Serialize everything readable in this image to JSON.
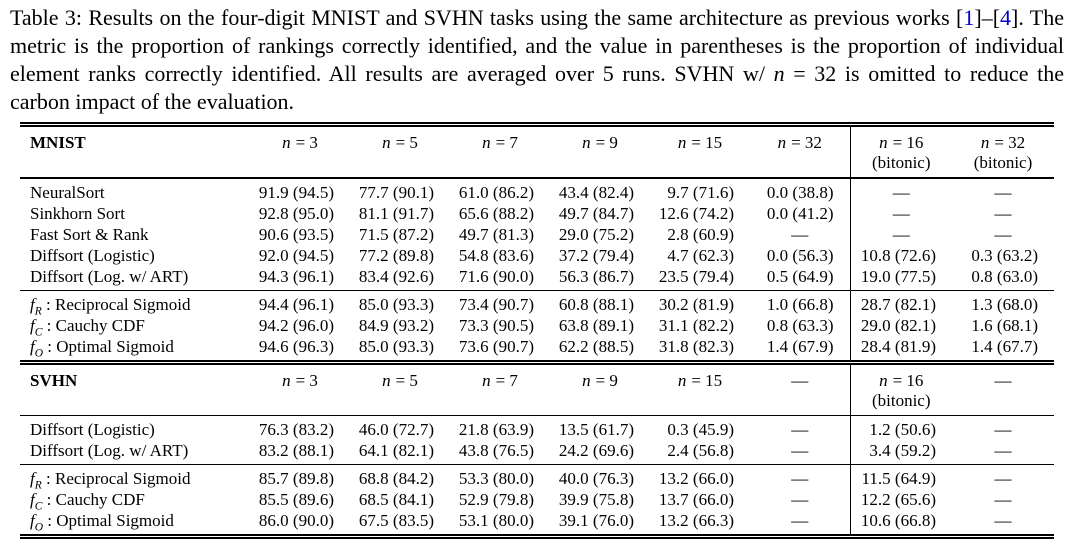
{
  "colors": {
    "link": "#0000cc",
    "text": "#000000"
  },
  "caption": {
    "parts": [
      {
        "text": "Table 3: Results on the four-digit MNIST and SVHN tasks using the same architecture as previous works ["
      },
      {
        "text": "1",
        "style": "link"
      },
      {
        "text": "]–["
      },
      {
        "text": "4",
        "style": "link"
      },
      {
        "text": "]. The metric is the proportion of rankings correctly identified, and the value in parentheses is the proportion of individual element ranks correctly identified. All results are averaged over 5 runs. SVHN w/ "
      },
      {
        "text": "n",
        "style": "math"
      },
      {
        "text": " = 32 is omitted to reduce the carbon impact of the evaluation."
      }
    ]
  },
  "table": {
    "sections": [
      {
        "id": "mnist",
        "title": "MNIST",
        "columns": [
          {
            "var": "n",
            "eq": "= 3"
          },
          {
            "var": "n",
            "eq": "= 5"
          },
          {
            "var": "n",
            "eq": "= 7"
          },
          {
            "var": "n",
            "eq": "= 9"
          },
          {
            "var": "n",
            "eq": "= 15"
          },
          {
            "var": "n",
            "eq": "= 32"
          },
          {
            "var": "n",
            "eq": "= 16",
            "note": "(bitonic)"
          },
          {
            "var": "n",
            "eq": "= 32",
            "note": "(bitonic)"
          }
        ],
        "groups": [
          {
            "rows": [
              {
                "label": {
                  "text": "NeuralSort"
                },
                "values": [
                  "91.9 (94.5)",
                  "77.7 (90.1)",
                  "61.0 (86.2)",
                  "43.4 (82.4)",
                  "9.7 (71.6)",
                  "0.0 (38.8)",
                  "—",
                  "—"
                ]
              },
              {
                "label": {
                  "text": "Sinkhorn Sort"
                },
                "values": [
                  "92.8 (95.0)",
                  "81.1 (91.7)",
                  "65.6 (88.2)",
                  "49.7 (84.7)",
                  "12.6 (74.2)",
                  "0.0 (41.2)",
                  "—",
                  "—"
                ]
              },
              {
                "label": {
                  "text": "Fast Sort & Rank"
                },
                "values": [
                  "90.6 (93.5)",
                  "71.5 (87.2)",
                  "49.7 (81.3)",
                  "29.0 (75.2)",
                  "2.8 (60.9)",
                  "—",
                  "—",
                  "—"
                ]
              },
              {
                "label": {
                  "text": "Diffsort (Logistic)"
                },
                "values": [
                  "92.0 (94.5)",
                  "77.2 (89.8)",
                  "54.8 (83.6)",
                  "37.2 (79.4)",
                  "4.7 (62.3)",
                  "0.0 (56.3)",
                  "10.8 (72.6)",
                  "0.3 (63.2)"
                ]
              },
              {
                "label": {
                  "text": "Diffsort (Log. w/ ART)"
                },
                "values": [
                  "94.3 (96.1)",
                  "83.4 (92.6)",
                  "71.6 (90.0)",
                  "56.3 (86.7)",
                  "23.5 (79.4)",
                  "0.5 (64.9)",
                  "19.0 (77.5)",
                  "0.8 (63.0)"
                ]
              }
            ]
          },
          {
            "rows": [
              {
                "label": {
                  "fvar": "f",
                  "fsub": "R",
                  "text": " : Reciprocal Sigmoid"
                },
                "values": [
                  "94.4 (96.1)",
                  "85.0 (93.3)",
                  "73.4 (90.7)",
                  "60.8 (88.1)",
                  "30.2 (81.9)",
                  "1.0 (66.8)",
                  "28.7 (82.1)",
                  "1.3 (68.0)"
                ]
              },
              {
                "label": {
                  "fvar": "f",
                  "fsub": "C",
                  "text": " : Cauchy CDF"
                },
                "values": [
                  "94.2 (96.0)",
                  "84.9 (93.2)",
                  "73.3 (90.5)",
                  "63.8 (89.1)",
                  "31.1 (82.2)",
                  "0.8 (63.3)",
                  "29.0 (82.1)",
                  "1.6 (68.1)"
                ]
              },
              {
                "label": {
                  "fvar": "f",
                  "fsub": "O",
                  "text": " : Optimal Sigmoid"
                },
                "values": [
                  "94.6 (96.3)",
                  "85.0 (93.3)",
                  "73.6 (90.7)",
                  "62.2 (88.5)",
                  "31.8 (82.3)",
                  "1.4 (67.9)",
                  "28.4 (81.9)",
                  "1.4 (67.7)"
                ]
              }
            ]
          }
        ]
      },
      {
        "id": "svhn",
        "title": "SVHN",
        "columns": [
          {
            "var": "n",
            "eq": "= 3"
          },
          {
            "var": "n",
            "eq": "= 5"
          },
          {
            "var": "n",
            "eq": "= 7"
          },
          {
            "var": "n",
            "eq": "= 9"
          },
          {
            "var": "n",
            "eq": "= 15"
          },
          {
            "dash": "—"
          },
          {
            "var": "n",
            "eq": "= 16",
            "note": "(bitonic)"
          },
          {
            "dash": "—"
          }
        ],
        "groups": [
          {
            "rows": [
              {
                "label": {
                  "text": "Diffsort (Logistic)"
                },
                "values": [
                  "76.3 (83.2)",
                  "46.0 (72.7)",
                  "21.8 (63.9)",
                  "13.5 (61.7)",
                  "0.3 (45.9)",
                  "—",
                  "1.2 (50.6)",
                  "—"
                ]
              },
              {
                "label": {
                  "text": "Diffsort (Log. w/ ART)"
                },
                "values": [
                  "83.2 (88.1)",
                  "64.1 (82.1)",
                  "43.8 (76.5)",
                  "24.2 (69.6)",
                  "2.4 (56.8)",
                  "—",
                  "3.4 (59.2)",
                  "—"
                ]
              }
            ]
          },
          {
            "rows": [
              {
                "label": {
                  "fvar": "f",
                  "fsub": "R",
                  "text": " : Reciprocal Sigmoid"
                },
                "values": [
                  "85.7 (89.8)",
                  "68.8 (84.2)",
                  "53.3 (80.0)",
                  "40.0 (76.3)",
                  "13.2 (66.0)",
                  "—",
                  "11.5 (64.9)",
                  "—"
                ]
              },
              {
                "label": {
                  "fvar": "f",
                  "fsub": "C",
                  "text": " : Cauchy CDF"
                },
                "values": [
                  "85.5 (89.6)",
                  "68.5 (84.1)",
                  "52.9 (79.8)",
                  "39.9 (75.8)",
                  "13.7 (66.0)",
                  "—",
                  "12.2 (65.6)",
                  "—"
                ]
              },
              {
                "label": {
                  "fvar": "f",
                  "fsub": "O",
                  "text": " : Optimal Sigmoid"
                },
                "values": [
                  "86.0 (90.0)",
                  "67.5 (83.5)",
                  "53.1 (80.0)",
                  "39.1 (76.0)",
                  "13.2 (66.3)",
                  "—",
                  "10.6 (66.8)",
                  "—"
                ]
              }
            ]
          }
        ]
      }
    ]
  }
}
